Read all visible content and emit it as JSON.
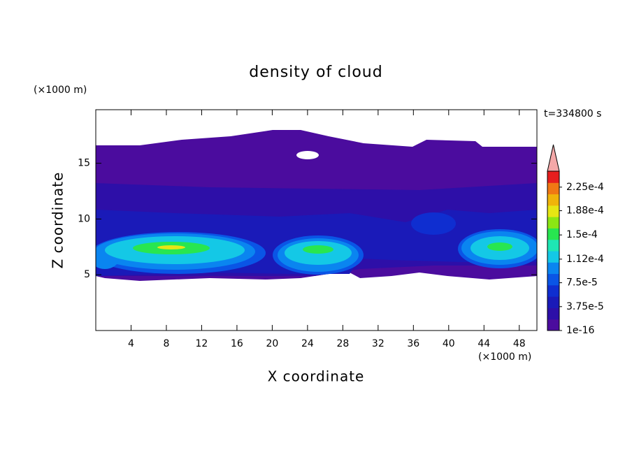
{
  "chart_data": {
    "type": "contour",
    "title": "density of cloud",
    "x_label": "X coordinate",
    "y_label": "Z coordinate",
    "x_unit": "(×1000 m)",
    "y_unit": "(×1000 m)",
    "time_label": "t=334800 s",
    "xlim": [
      0,
      50
    ],
    "xticks": [
      4,
      8,
      12,
      16,
      20,
      24,
      28,
      32,
      36,
      40,
      44,
      48
    ],
    "ylim": [
      0,
      19.8
    ],
    "yticks": [
      5,
      10,
      15
    ],
    "colorbar": {
      "lim": [
        0,
        0.00025
      ],
      "ticks": [
        1e-16,
        {
          "value": 3.75e-05,
          "label": "3.75e-5"
        },
        {
          "value": 7.5e-05,
          "label": "7.5e-5"
        },
        {
          "value": 0.000112,
          "label": "1.12e-4"
        },
        {
          "value": 0.00015,
          "label": "1.5e-4"
        },
        {
          "value": 0.000188,
          "label": "1.88e-4"
        },
        {
          "value": 0.000225,
          "label": "2.25e-4"
        }
      ],
      "colors": [
        "#4b0c9e",
        "#2d0fa8",
        "#1a1ab8",
        "#0f2ed0",
        "#0a55e6",
        "#0a85f0",
        "#14c8e6",
        "#1ee6b4",
        "#28e650",
        "#8ce614",
        "#e6e614",
        "#f0b40a",
        "#f07814",
        "#e61e1e"
      ],
      "extend_color": "#f4a8a8"
    }
  }
}
